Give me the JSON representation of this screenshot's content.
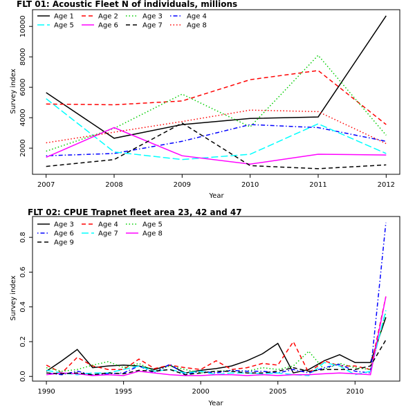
{
  "chart_data": [
    {
      "type": "line",
      "title": "FLT 01: Acoustic Fleet   N of individuals, millions",
      "xlabel": "Year",
      "ylabel": "Survey index",
      "x": [
        2007,
        2008,
        2009,
        2010,
        2011,
        2012
      ],
      "xlim": [
        2006.8,
        2012.2
      ],
      "ylim": [
        280,
        11100
      ],
      "xticks": [
        2007,
        2008,
        2009,
        2010,
        2011,
        2012
      ],
      "yticks": [
        2000,
        4000,
        6000,
        8000,
        10000
      ],
      "legend_placement": "top-left",
      "series": [
        {
          "name": "Age 1",
          "color": "#000000",
          "dash": "solid",
          "values": [
            5650,
            2650,
            3550,
            3950,
            4050,
            10700
          ]
        },
        {
          "name": "Age 2",
          "color": "#ff0000",
          "dash": "dashed",
          "values": [
            4900,
            4850,
            5100,
            6500,
            7100,
            3550
          ]
        },
        {
          "name": "Age 3",
          "color": "#00cd00",
          "dash": "dotted",
          "values": [
            1800,
            3300,
            5550,
            3400,
            8100,
            2850
          ]
        },
        {
          "name": "Age 4",
          "color": "#0000ff",
          "dash": "dotdash",
          "values": [
            1500,
            1650,
            2450,
            3550,
            3350,
            2450
          ]
        },
        {
          "name": "Age 5",
          "color": "#00ffff",
          "dash": "longdash",
          "values": [
            5250,
            1750,
            1250,
            1600,
            3600,
            1650
          ]
        },
        {
          "name": "Age 6",
          "color": "#ff00ff",
          "dash": "solid",
          "values": [
            1400,
            3350,
            1500,
            950,
            1600,
            1550
          ]
        },
        {
          "name": "Age 7",
          "color": "#000000",
          "dash": "dashed",
          "values": [
            800,
            1250,
            3650,
            850,
            650,
            900
          ]
        },
        {
          "name": "Age 8",
          "color": "#ff0000",
          "dash": "dotted",
          "values": [
            2350,
            3050,
            3750,
            4500,
            4400,
            2300
          ]
        }
      ]
    },
    {
      "type": "line",
      "title": "FLT 02: CPUE Trapnet fleet area 23, 42 and 47",
      "xlabel": "Year",
      "ylabel": "Survey index",
      "x": [
        1990,
        1991,
        1992,
        1993,
        1994,
        1995,
        1996,
        1997,
        1998,
        1999,
        2000,
        2001,
        2002,
        2003,
        2004,
        2005,
        2006,
        2007,
        2008,
        2009,
        2010,
        2011,
        2012
      ],
      "xlim": [
        1989.1,
        2012.9
      ],
      "ylim": [
        -0.027,
        0.92
      ],
      "xticks": [
        1990,
        1995,
        2000,
        2005,
        2010
      ],
      "yticks": [
        0.0,
        0.2,
        0.4,
        0.6,
        0.8
      ],
      "ytick_labels": [
        "0.0",
        "0.2",
        "0.4",
        "0.6",
        "0.8"
      ],
      "legend_placement": "top-left",
      "series": [
        {
          "name": "Age 3",
          "color": "#000000",
          "dash": "solid",
          "values": [
            0.03,
            0.09,
            0.155,
            0.05,
            0.06,
            0.065,
            0.06,
            0.04,
            0.065,
            0.02,
            0.035,
            0.045,
            0.06,
            0.09,
            0.13,
            0.19,
            0.02,
            0.04,
            0.09,
            0.125,
            0.08,
            0.08,
            0.34
          ]
        },
        {
          "name": "Age 4",
          "color": "#ff0000",
          "dash": "dashed",
          "values": [
            0.065,
            0.02,
            0.11,
            0.06,
            0.04,
            0.04,
            0.1,
            0.045,
            0.065,
            0.05,
            0.04,
            0.09,
            0.04,
            0.05,
            0.075,
            0.065,
            0.2,
            0.02,
            0.09,
            0.06,
            0.06,
            0.04,
            0.46
          ]
        },
        {
          "name": "Age 5",
          "color": "#00cd00",
          "dash": "dotted",
          "values": [
            0.05,
            0.03,
            0.04,
            0.065,
            0.085,
            0.05,
            0.075,
            0.03,
            0.06,
            0.04,
            0.02,
            0.03,
            0.035,
            0.03,
            0.05,
            0.04,
            0.06,
            0.145,
            0.04,
            0.075,
            0.05,
            0.04,
            0.37
          ]
        },
        {
          "name": "Age 6",
          "color": "#0000ff",
          "dash": "dotdash",
          "values": [
            0.02,
            0.01,
            0.03,
            0.01,
            0.015,
            0.02,
            0.06,
            0.02,
            0.07,
            0.01,
            0.03,
            0.02,
            0.035,
            0.03,
            0.03,
            0.02,
            0.04,
            0.02,
            0.05,
            0.07,
            0.03,
            0.02,
            0.885
          ]
        },
        {
          "name": "Age 7",
          "color": "#00ffff",
          "dash": "longdash",
          "values": [
            0.035,
            0.02,
            0.01,
            0.02,
            0.02,
            0.04,
            0.06,
            0.03,
            0.04,
            0.02,
            0.03,
            0.01,
            0.02,
            0.02,
            0.015,
            0.02,
            0.01,
            0.005,
            0.08,
            0.06,
            0.01,
            0.03,
            0.38
          ]
        },
        {
          "name": "Age 8",
          "color": "#ff00ff",
          "dash": "solid",
          "values": [
            0.01,
            0.02,
            0.015,
            0.005,
            0.01,
            0.005,
            0.03,
            0.02,
            0.01,
            0.005,
            0.005,
            0.01,
            0.01,
            0.005,
            0.01,
            0.005,
            0.01,
            0.01,
            0.015,
            0.02,
            0.015,
            0.01,
            0.46
          ]
        },
        {
          "name": "Age 9",
          "color": "#000000",
          "dash": "dashed",
          "values": [
            0.02,
            0.015,
            0.02,
            0.01,
            0.02,
            0.015,
            0.035,
            0.03,
            0.04,
            0.01,
            0.02,
            0.03,
            0.03,
            0.02,
            0.02,
            0.03,
            0.05,
            0.03,
            0.04,
            0.04,
            0.04,
            0.06,
            0.21
          ]
        }
      ]
    }
  ]
}
